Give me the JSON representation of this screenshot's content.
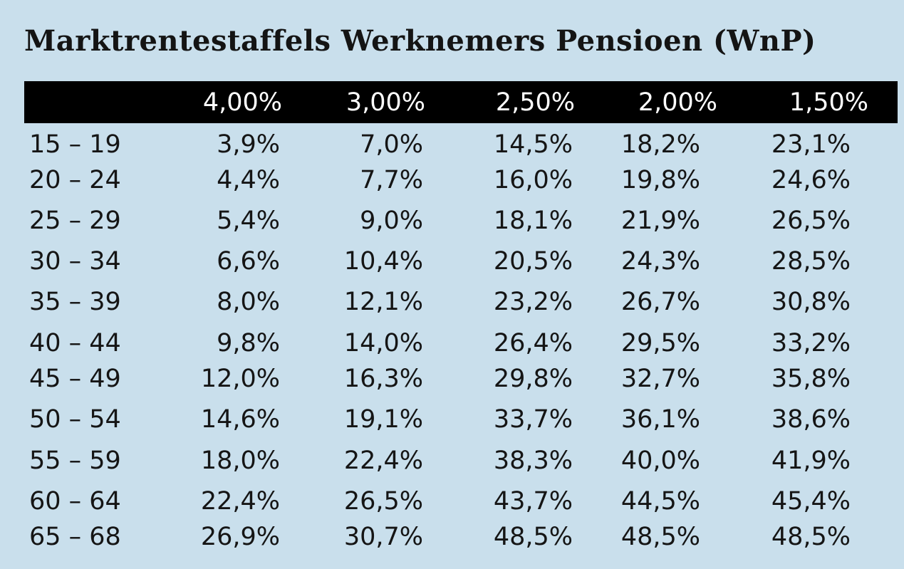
{
  "title": "Marktrentestaffels Werknemers Pensioen (WnP)",
  "table": {
    "headers": [
      "",
      "4,00%",
      "3,00%",
      "2,50%",
      "2,00%",
      "1,50%"
    ],
    "rows": [
      {
        "age": "15 – 19",
        "values": [
          "3,9%",
          "7,0%",
          "14,5%",
          "18,2%",
          "23,1%"
        ]
      },
      {
        "age": "20 – 24",
        "values": [
          "4,4%",
          "7,7%",
          "16,0%",
          "19,8%",
          "24,6%"
        ]
      },
      {
        "age": "25 – 29",
        "values": [
          "5,4%",
          "9,0%",
          "18,1%",
          "21,9%",
          "26,5%"
        ]
      },
      {
        "age": "30 – 34",
        "values": [
          "6,6%",
          "10,4%",
          "20,5%",
          "24,3%",
          "28,5%"
        ]
      },
      {
        "age": "35 – 39",
        "values": [
          "8,0%",
          "12,1%",
          "23,2%",
          "26,7%",
          "30,8%"
        ]
      },
      {
        "age": "40 – 44",
        "values": [
          "9,8%",
          "14,0%",
          "26,4%",
          "29,5%",
          "33,2%"
        ]
      },
      {
        "age": "45 – 49",
        "values": [
          "12,0%",
          "16,3%",
          "29,8%",
          "32,7%",
          "35,8%"
        ]
      },
      {
        "age": "50 – 54",
        "values": [
          "14,6%",
          "19,1%",
          "33,7%",
          "36,1%",
          "38,6%"
        ]
      },
      {
        "age": "55 – 59",
        "values": [
          "18,0%",
          "22,4%",
          "38,3%",
          "40,0%",
          "41,9%"
        ]
      },
      {
        "age": "60 – 64",
        "values": [
          "22,4%",
          "26,5%",
          "43,7%",
          "44,5%",
          "45,4%"
        ]
      },
      {
        "age": "65 – 68",
        "values": [
          "26,9%",
          "30,7%",
          "48,5%",
          "48,5%",
          "48,5%"
        ]
      }
    ]
  },
  "colors": {
    "background": "#c9dfec",
    "header_bar": "#000000",
    "header_text": "#ffffff",
    "text": "#151515"
  }
}
